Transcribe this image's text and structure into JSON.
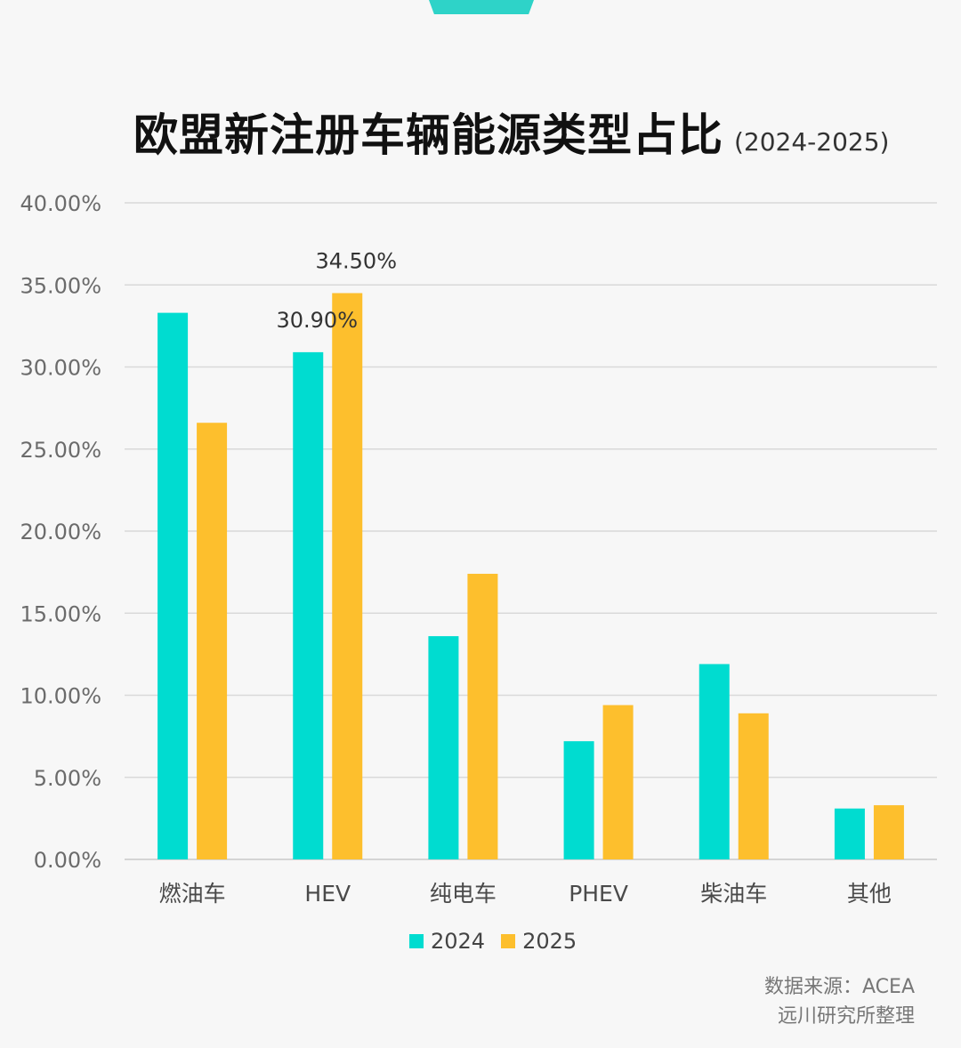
{
  "title": "欧盟新注册车辆能源类型占比",
  "subtitle": "(2024-2025)",
  "source": {
    "line1": "数据来源：ACEA",
    "line2": "远川研究所整理"
  },
  "colors": {
    "series_2024": "#00dcd0",
    "series_2025": "#fdbf2d",
    "grid": "#d9d9d9",
    "tab": "#2ed3c8"
  },
  "chart_data": {
    "type": "bar",
    "categories": [
      "燃油车",
      "HEV",
      "纯电车",
      "PHEV",
      "柴油车",
      "其他"
    ],
    "series": [
      {
        "name": "2024",
        "values": [
          33.3,
          30.9,
          13.6,
          7.2,
          11.9,
          3.1
        ]
      },
      {
        "name": "2025",
        "values": [
          26.6,
          34.5,
          17.4,
          9.4,
          8.9,
          3.3
        ]
      }
    ],
    "ylim": [
      0,
      40
    ],
    "yticks": [
      "0.00%",
      "5.00%",
      "10.00%",
      "15.00%",
      "20.00%",
      "25.00%",
      "30.00%",
      "35.00%",
      "40.00%"
    ],
    "data_labels": [
      {
        "series": 0,
        "category": 1,
        "text": "30.90%"
      },
      {
        "series": 1,
        "category": 1,
        "text": "34.50%"
      }
    ],
    "grid": true,
    "legend_position": "bottom"
  }
}
